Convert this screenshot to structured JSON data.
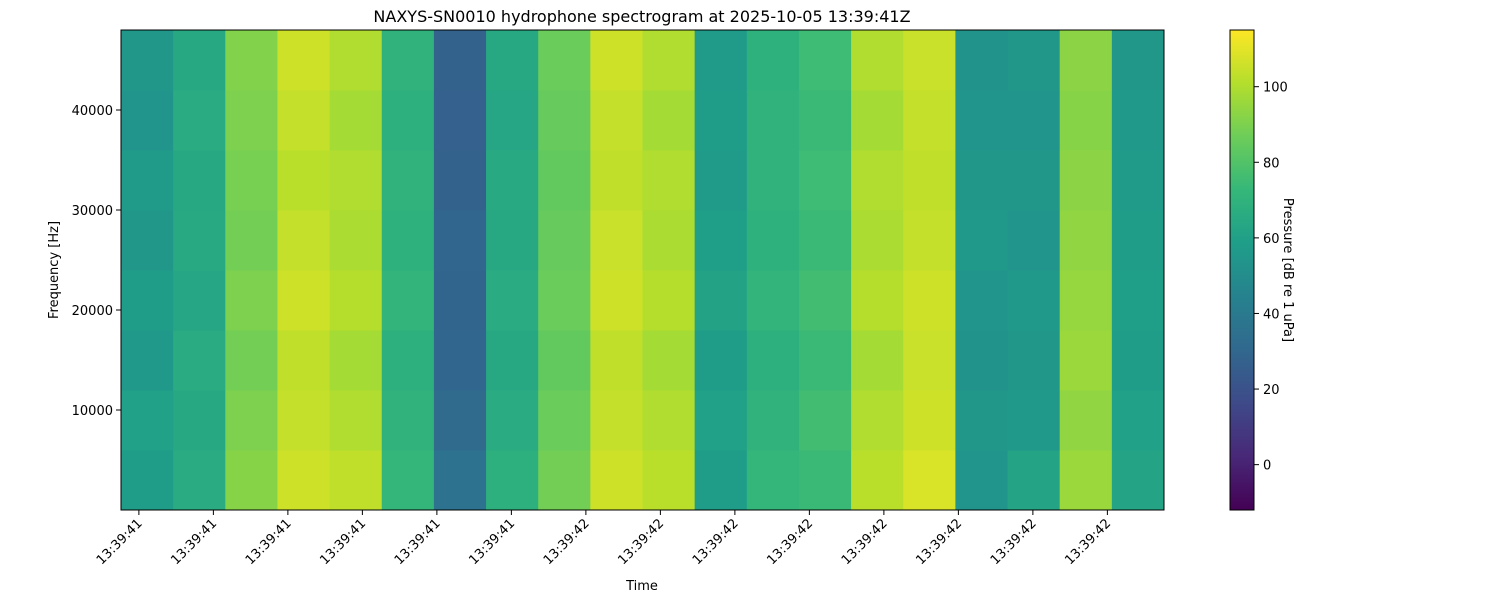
{
  "chart_data": {
    "type": "heatmap",
    "title": "NAXYS-SN0010 hydrophone spectrogram at 2025-10-05 13:39:41Z",
    "x_label": "Time",
    "y_label": "Frequency [Hz]",
    "colorbar_label": "Pressure [dB re 1 uPa]",
    "colormap": "viridis",
    "x_bins": [
      41.376,
      41.446,
      41.516,
      41.586,
      41.656,
      41.726,
      41.796,
      41.866,
      41.936,
      42.006,
      42.076,
      42.146,
      42.216,
      42.286,
      42.356,
      42.426,
      42.496,
      42.566,
      42.636,
      42.706,
      42.776
    ],
    "y_bins": [
      0,
      6000,
      12000,
      18000,
      24000,
      30000,
      36000,
      42000,
      48000
    ],
    "z": [
      [
        58,
        66,
        92,
        106,
        103,
        72,
        36,
        68,
        88,
        106,
        102,
        58,
        72,
        74,
        102,
        108,
        54,
        62,
        96,
        62
      ],
      [
        60,
        64,
        90,
        104,
        100,
        70,
        32,
        66,
        86,
        104,
        100,
        60,
        70,
        76,
        100,
        106,
        55,
        56,
        94,
        60
      ],
      [
        56,
        66,
        88,
        103,
        98,
        68,
        30,
        64,
        84,
        103,
        98,
        58,
        68,
        74,
        98,
        105,
        53,
        55,
        96,
        58
      ],
      [
        58,
        63,
        90,
        106,
        101,
        71,
        29,
        66,
        86,
        106,
        101,
        61,
        71,
        76,
        101,
        106,
        54,
        56,
        95,
        59
      ],
      [
        55,
        65,
        88,
        104,
        99,
        69,
        30,
        64,
        85,
        105,
        99,
        59,
        69,
        74,
        99,
        104,
        56,
        54,
        94,
        58
      ],
      [
        57,
        64,
        89,
        102,
        100,
        70,
        28,
        65,
        84,
        103,
        100,
        57,
        70,
        75,
        100,
        103,
        55,
        55,
        93,
        57
      ],
      [
        54,
        66,
        90,
        104,
        98,
        68,
        27,
        63,
        85,
        104,
        98,
        58,
        70,
        74,
        98,
        104,
        54,
        54,
        92,
        56
      ],
      [
        55,
        64,
        91,
        106,
        100,
        70,
        28,
        64,
        86,
        106,
        100,
        57,
        69,
        75,
        100,
        105,
        53,
        55,
        93,
        55
      ]
    ],
    "xlim": [
      41.376,
      42.776
    ],
    "xticks": [
      {
        "value": 41.4,
        "label": "13:39:41"
      },
      {
        "value": 41.5,
        "label": "13:39:41"
      },
      {
        "value": 41.6,
        "label": "13:39:41"
      },
      {
        "value": 41.7,
        "label": "13:39:41"
      },
      {
        "value": 41.8,
        "label": "13:39:41"
      },
      {
        "value": 41.9,
        "label": "13:39:41"
      },
      {
        "value": 42.0,
        "label": "13:39:42"
      },
      {
        "value": 42.1,
        "label": "13:39:42"
      },
      {
        "value": 42.2,
        "label": "13:39:42"
      },
      {
        "value": 42.3,
        "label": "13:39:42"
      },
      {
        "value": 42.4,
        "label": "13:39:42"
      },
      {
        "value": 42.5,
        "label": "13:39:42"
      },
      {
        "value": 42.6,
        "label": "13:39:42"
      },
      {
        "value": 42.7,
        "label": "13:39:42"
      }
    ],
    "ylim": [
      0,
      48000
    ],
    "yticks": [
      10000,
      20000,
      30000,
      40000
    ],
    "clim": [
      -12,
      115
    ],
    "cticks": [
      0,
      20,
      40,
      60,
      80,
      100
    ]
  }
}
